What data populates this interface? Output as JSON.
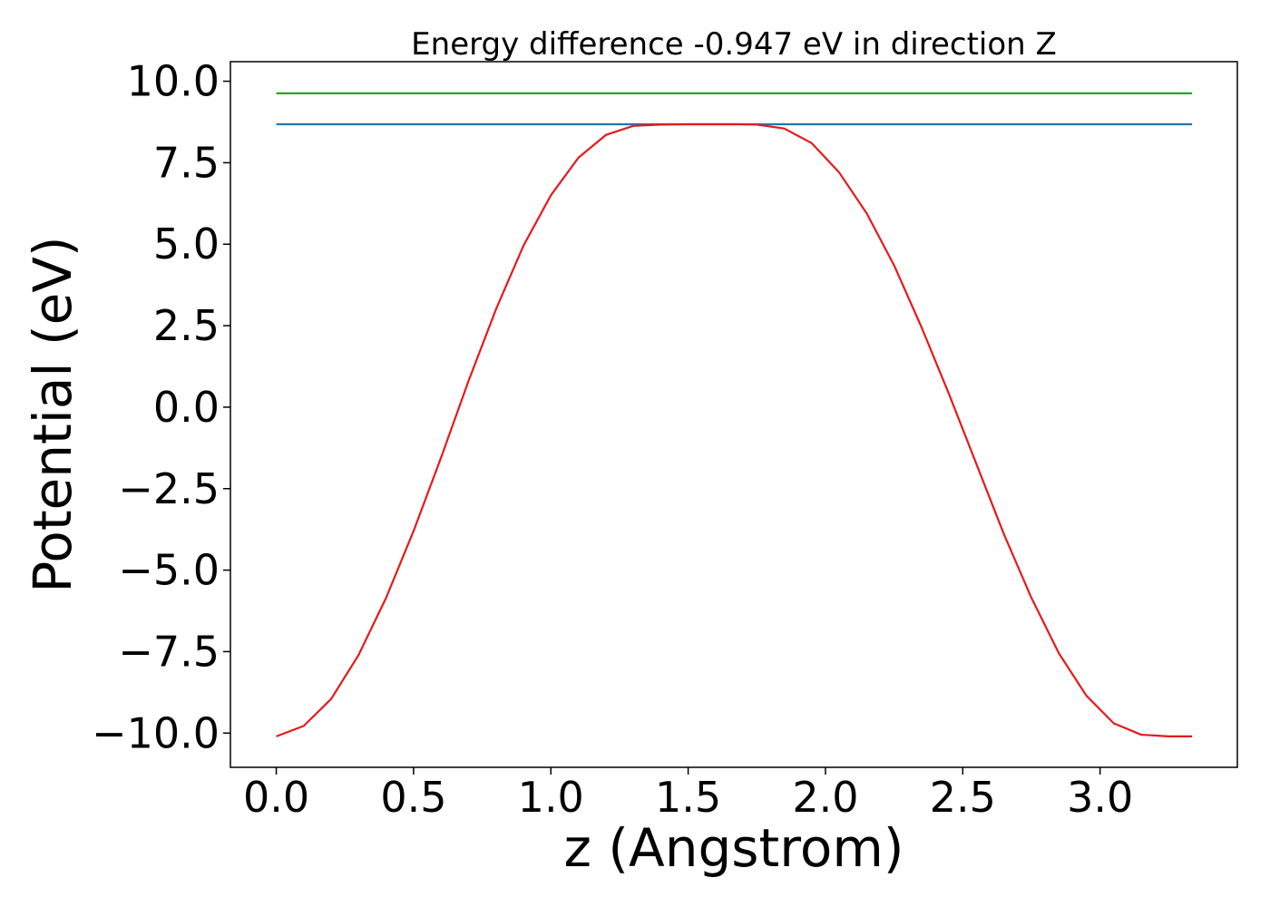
{
  "chart_data": {
    "type": "line",
    "title": "Energy difference -0.947 eV in direction Z",
    "xlabel": "z (Angstrom)",
    "ylabel": "Potential (eV)",
    "xlim": [
      -0.167,
      3.5
    ],
    "ylim": [
      -11.05,
      10.6
    ],
    "x_ticks": [
      0.0,
      0.5,
      1.0,
      1.5,
      2.0,
      2.5,
      3.0
    ],
    "x_tick_labels": [
      "0.0",
      "0.5",
      "1.0",
      "1.5",
      "2.0",
      "2.5",
      "3.0"
    ],
    "y_ticks": [
      10.0,
      7.5,
      5.0,
      2.5,
      0.0,
      -2.5,
      -5.0,
      -7.5,
      -10.0
    ],
    "y_tick_labels": [
      "10.0",
      "7.5",
      "5.0",
      "2.5",
      "0.0",
      "−2.5",
      "−5.0",
      "−7.5",
      "−10.0"
    ],
    "grid": false,
    "series": [
      {
        "color": "#2ca02c",
        "x": [
          0.0,
          3.335
        ],
        "y": [
          9.63,
          9.63
        ]
      },
      {
        "color": "#1f77b4",
        "x": [
          0.0,
          3.335
        ],
        "y": [
          8.68,
          8.68
        ]
      },
      {
        "color": "#e41a1c",
        "x": [
          0.0,
          0.1,
          0.2,
          0.3,
          0.4,
          0.5,
          0.6,
          0.7,
          0.8,
          0.9,
          1.0,
          1.1,
          1.2,
          1.3,
          1.4,
          1.5,
          1.6,
          1.68,
          1.75,
          1.85,
          1.95,
          2.05,
          2.15,
          2.25,
          2.35,
          2.45,
          2.55,
          2.65,
          2.75,
          2.85,
          2.95,
          3.05,
          3.15,
          3.25,
          3.335
        ],
        "y": [
          -10.1,
          -9.78,
          -8.95,
          -7.6,
          -5.85,
          -3.8,
          -1.55,
          0.8,
          3.0,
          4.95,
          6.5,
          7.65,
          8.35,
          8.63,
          8.67,
          8.68,
          8.68,
          8.68,
          8.67,
          8.55,
          8.1,
          7.2,
          5.95,
          4.35,
          2.45,
          0.4,
          -1.75,
          -3.9,
          -5.85,
          -7.55,
          -8.85,
          -9.7,
          -10.05,
          -10.1,
          -10.1
        ]
      }
    ]
  }
}
